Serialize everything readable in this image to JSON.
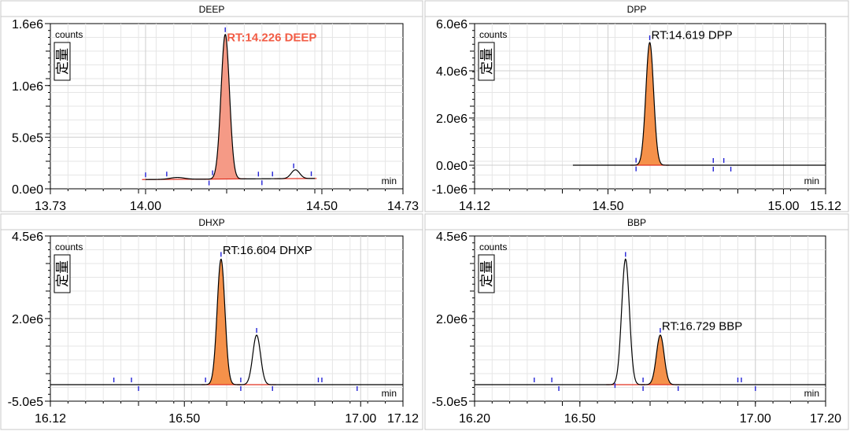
{
  "chart_data": [
    {
      "type": "line",
      "title": "DEEP",
      "ylabel": "counts",
      "xlabel": "min",
      "ylabel_box": "定量",
      "xlim": [
        13.73,
        14.73
      ],
      "ylim": [
        0,
        1600000
      ],
      "y_ticks": [
        0,
        500000,
        1000000,
        1600000
      ],
      "y_tick_labels": [
        "0.0e0",
        "5.0e5",
        "1.0e6",
        "1.6e6"
      ],
      "x_ticks": [
        13.73,
        14.0,
        14.5,
        14.73
      ],
      "x_tick_labels": [
        "13.73",
        "14.00",
        "14.50",
        "14.73"
      ],
      "trace_start": 14.0,
      "trace_end": 14.48,
      "baseline": 90000,
      "baseline_end": 100000,
      "peaks": [
        {
          "rt": 14.226,
          "height": 1400000,
          "sigma": 0.012,
          "filled": true
        },
        {
          "rt": 14.09,
          "height": 18000,
          "sigma": 0.02,
          "filled": false
        },
        {
          "rt": 14.425,
          "height": 85000,
          "sigma": 0.012,
          "filled": false
        }
      ],
      "markers_top": [
        14.0,
        14.06,
        14.19,
        14.226,
        14.32,
        14.36,
        14.42,
        14.47
      ],
      "markers_bottom": [
        14.18,
        14.33
      ],
      "annotation": {
        "text": "RT:14.226 DEEP",
        "x": 14.226,
        "y": 1430000,
        "color": "#f25c45",
        "bold": true
      },
      "fill_color": "#f59a86",
      "highlight_color": "#e03020"
    },
    {
      "type": "line",
      "title": "DPP",
      "ylabel": "counts",
      "xlabel": "min",
      "ylabel_box": "定量",
      "xlim": [
        14.12,
        15.12
      ],
      "ylim": [
        -1000000,
        6000000
      ],
      "y_ticks": [
        -1000000,
        0,
        2000000,
        4000000,
        6000000
      ],
      "y_tick_labels": [
        "-1.0e6",
        "0.0e0",
        "2.0e6",
        "4.0e6",
        "6.0e6"
      ],
      "x_ticks": [
        14.12,
        14.5,
        15.0,
        15.12
      ],
      "x_tick_labels": [
        "14.12",
        "14.50",
        "15.00",
        "15.12"
      ],
      "trace_start": 14.4,
      "trace_end": 15.12,
      "baseline": 0,
      "baseline_end": 0,
      "peaks": [
        {
          "rt": 14.619,
          "height": 5200000,
          "sigma": 0.011,
          "filled": true
        }
      ],
      "markers_top": [
        14.58,
        14.619,
        14.8,
        14.83
      ],
      "markers_bottom": [
        14.58,
        14.8,
        14.85
      ],
      "annotation": {
        "text": "RT:14.619 DPP",
        "x": 14.619,
        "y": 5350000,
        "color": "#000000",
        "bold": false
      },
      "fill_color": "#f5914a",
      "highlight_color": "#e03020"
    },
    {
      "type": "line",
      "title": "DHXP",
      "ylabel": "counts",
      "xlabel": "min",
      "ylabel_box": "定量",
      "xlim": [
        16.12,
        17.12
      ],
      "ylim": [
        -500000,
        4500000
      ],
      "y_ticks": [
        -500000,
        2000000,
        4500000
      ],
      "y_tick_labels": [
        "-5.0e5",
        "2.0e6",
        "4.5e6"
      ],
      "x_ticks": [
        16.12,
        16.5,
        17.0,
        17.12
      ],
      "x_tick_labels": [
        "16.12",
        "16.50",
        "17.00",
        "17.12"
      ],
      "trace_start": 16.12,
      "trace_end": 17.12,
      "baseline": 0,
      "baseline_end": 0,
      "peaks": [
        {
          "rt": 16.604,
          "height": 3800000,
          "sigma": 0.011,
          "filled": true
        },
        {
          "rt": 16.705,
          "height": 1500000,
          "sigma": 0.011,
          "filled": false
        }
      ],
      "markers_top": [
        16.3,
        16.35,
        16.56,
        16.604,
        16.66,
        16.705,
        16.88,
        16.89
      ],
      "markers_bottom": [
        16.37,
        16.66,
        16.75,
        16.99
      ],
      "annotation": {
        "text": "RT:16.604 DHXP",
        "x": 16.604,
        "y": 3950000,
        "color": "#000000",
        "bold": false
      },
      "fill_color": "#f5914a",
      "highlight_color": "#e03020"
    },
    {
      "type": "line",
      "title": "BBP",
      "ylabel": "counts",
      "xlabel": "min",
      "ylabel_box": "定量",
      "xlim": [
        16.2,
        17.2
      ],
      "ylim": [
        -500000,
        4500000
      ],
      "y_ticks": [
        -500000,
        2000000,
        4500000
      ],
      "y_tick_labels": [
        "-5.0e5",
        "2.0e6",
        "4.5e6"
      ],
      "x_ticks": [
        16.2,
        16.5,
        17.0,
        17.2
      ],
      "x_tick_labels": [
        "16.20",
        "16.50",
        "17.00",
        "17.20"
      ],
      "trace_start": 16.2,
      "trace_end": 17.2,
      "baseline": 0,
      "baseline_end": 0,
      "peaks": [
        {
          "rt": 16.63,
          "height": 3800000,
          "sigma": 0.011,
          "filled": false
        },
        {
          "rt": 16.729,
          "height": 1500000,
          "sigma": 0.011,
          "filled": true
        }
      ],
      "markers_top": [
        16.37,
        16.42,
        16.63,
        16.68,
        16.729,
        16.95,
        16.96
      ],
      "markers_bottom": [
        16.44,
        16.6,
        16.68,
        16.78,
        17.0
      ],
      "annotation": {
        "text": "RT:16.729 BBP",
        "x": 16.729,
        "y": 1650000,
        "color": "#000000",
        "bold": false
      },
      "fill_color": "#f5914a",
      "highlight_color": "#e03020"
    }
  ]
}
